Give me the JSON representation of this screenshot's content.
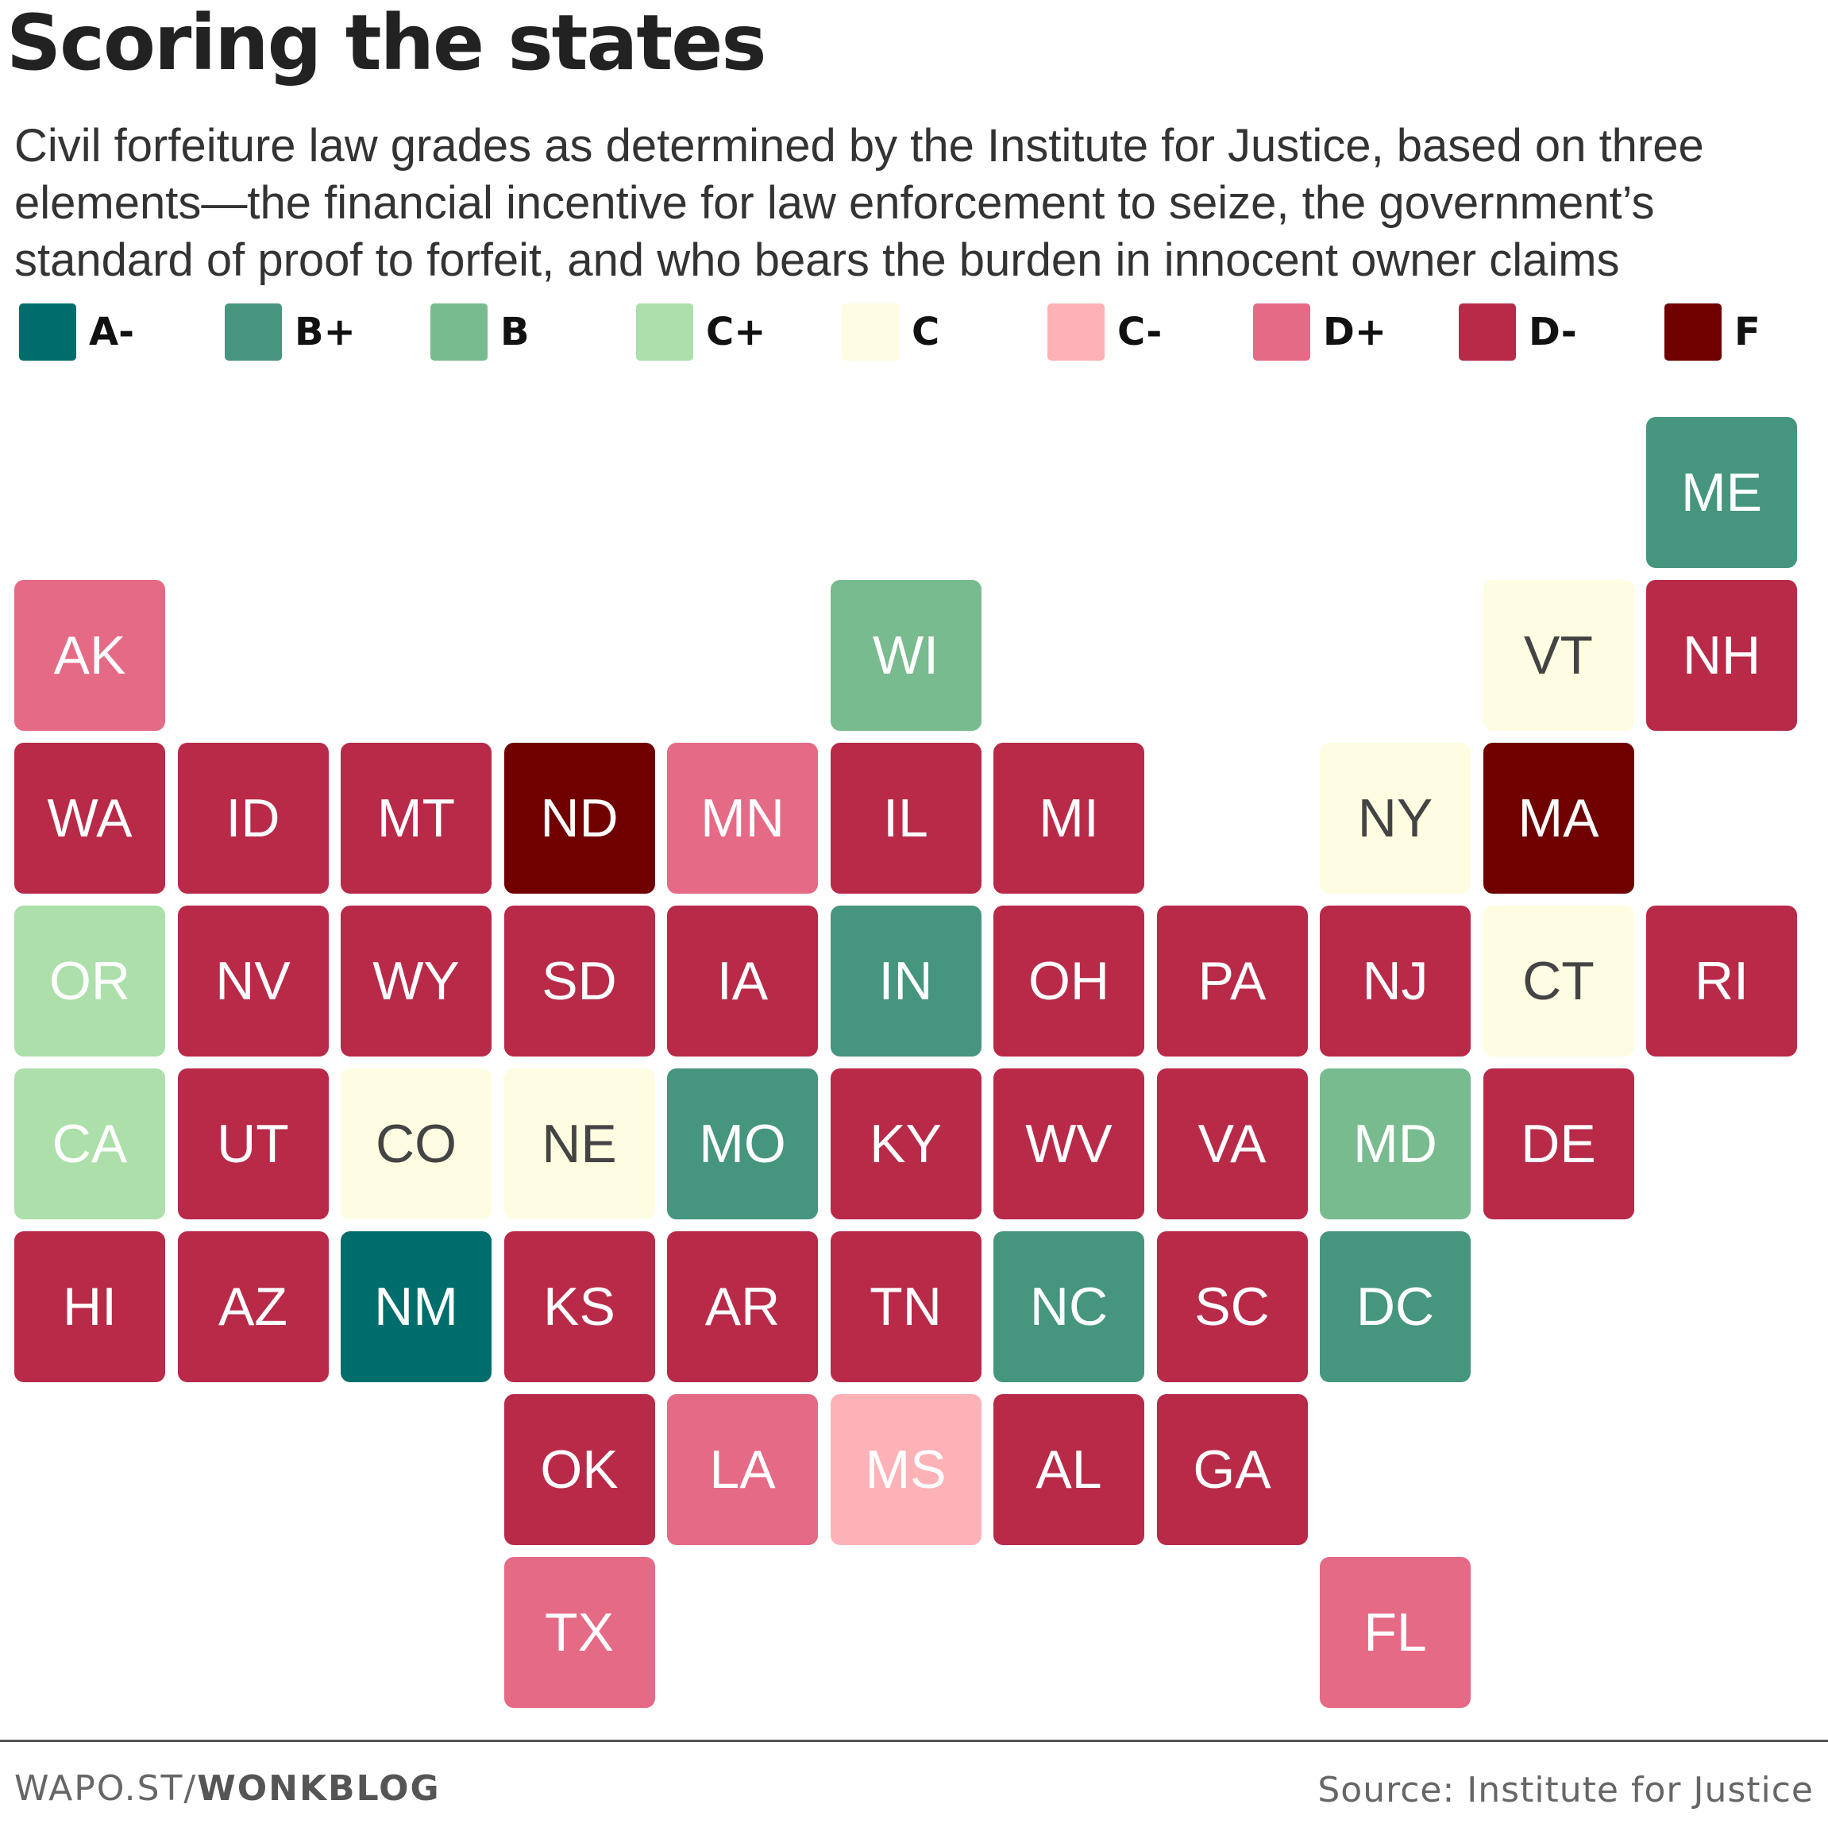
{
  "title": "Scoring the states",
  "subtitle": "Civil forfeiture law grades as determined by the Institute for Justice, based on three elements—the financial incentive for law enforcement to seize, the government’s standard of proof to forfeit, and who bears the burden in innocent owner claims",
  "legend": [
    {
      "grade": "A-",
      "color": "#006d6d"
    },
    {
      "grade": "B+",
      "color": "#46957e"
    },
    {
      "grade": "B",
      "color": "#78bb8e"
    },
    {
      "grade": "C+",
      "color": "#acdfa9"
    },
    {
      "grade": "C",
      "color": "#fefde2"
    },
    {
      "grade": "C-",
      "color": "#fdb2b7"
    },
    {
      "grade": "D+",
      "color": "#e56a86"
    },
    {
      "grade": "D-",
      "color": "#b82a48"
    },
    {
      "grade": "F",
      "color": "#700000"
    }
  ],
  "text_colors": {
    "on_light": "#444444",
    "on_dark": "#ffffff"
  },
  "states": [
    {
      "abbr": "ME",
      "grade": "B+",
      "row": 0,
      "col": 10
    },
    {
      "abbr": "AK",
      "grade": "D+",
      "row": 1,
      "col": 0
    },
    {
      "abbr": "WI",
      "grade": "B",
      "row": 1,
      "col": 5
    },
    {
      "abbr": "VT",
      "grade": "C",
      "row": 1,
      "col": 9
    },
    {
      "abbr": "NH",
      "grade": "D-",
      "row": 1,
      "col": 10
    },
    {
      "abbr": "WA",
      "grade": "D-",
      "row": 2,
      "col": 0
    },
    {
      "abbr": "ID",
      "grade": "D-",
      "row": 2,
      "col": 1
    },
    {
      "abbr": "MT",
      "grade": "D-",
      "row": 2,
      "col": 2
    },
    {
      "abbr": "ND",
      "grade": "F",
      "row": 2,
      "col": 3
    },
    {
      "abbr": "MN",
      "grade": "D+",
      "row": 2,
      "col": 4
    },
    {
      "abbr": "IL",
      "grade": "D-",
      "row": 2,
      "col": 5
    },
    {
      "abbr": "MI",
      "grade": "D-",
      "row": 2,
      "col": 6
    },
    {
      "abbr": "NY",
      "grade": "C",
      "row": 2,
      "col": 8
    },
    {
      "abbr": "MA",
      "grade": "F",
      "row": 2,
      "col": 9
    },
    {
      "abbr": "OR",
      "grade": "C+",
      "row": 3,
      "col": 0
    },
    {
      "abbr": "NV",
      "grade": "D-",
      "row": 3,
      "col": 1
    },
    {
      "abbr": "WY",
      "grade": "D-",
      "row": 3,
      "col": 2
    },
    {
      "abbr": "SD",
      "grade": "D-",
      "row": 3,
      "col": 3
    },
    {
      "abbr": "IA",
      "grade": "D-",
      "row": 3,
      "col": 4
    },
    {
      "abbr": "IN",
      "grade": "B+",
      "row": 3,
      "col": 5
    },
    {
      "abbr": "OH",
      "grade": "D-",
      "row": 3,
      "col": 6
    },
    {
      "abbr": "PA",
      "grade": "D-",
      "row": 3,
      "col": 7
    },
    {
      "abbr": "NJ",
      "grade": "D-",
      "row": 3,
      "col": 8
    },
    {
      "abbr": "CT",
      "grade": "C",
      "row": 3,
      "col": 9
    },
    {
      "abbr": "RI",
      "grade": "D-",
      "row": 3,
      "col": 10
    },
    {
      "abbr": "CA",
      "grade": "C+",
      "row": 4,
      "col": 0
    },
    {
      "abbr": "UT",
      "grade": "D-",
      "row": 4,
      "col": 1
    },
    {
      "abbr": "CO",
      "grade": "C",
      "row": 4,
      "col": 2
    },
    {
      "abbr": "NE",
      "grade": "C",
      "row": 4,
      "col": 3
    },
    {
      "abbr": "MO",
      "grade": "B+",
      "row": 4,
      "col": 4
    },
    {
      "abbr": "KY",
      "grade": "D-",
      "row": 4,
      "col": 5
    },
    {
      "abbr": "WV",
      "grade": "D-",
      "row": 4,
      "col": 6
    },
    {
      "abbr": "VA",
      "grade": "D-",
      "row": 4,
      "col": 7
    },
    {
      "abbr": "MD",
      "grade": "B",
      "row": 4,
      "col": 8
    },
    {
      "abbr": "DE",
      "grade": "D-",
      "row": 4,
      "col": 9
    },
    {
      "abbr": "HI",
      "grade": "D-",
      "row": 5,
      "col": 0
    },
    {
      "abbr": "AZ",
      "grade": "D-",
      "row": 5,
      "col": 1
    },
    {
      "abbr": "NM",
      "grade": "A-",
      "row": 5,
      "col": 2
    },
    {
      "abbr": "KS",
      "grade": "D-",
      "row": 5,
      "col": 3
    },
    {
      "abbr": "AR",
      "grade": "D-",
      "row": 5,
      "col": 4
    },
    {
      "abbr": "TN",
      "grade": "D-",
      "row": 5,
      "col": 5
    },
    {
      "abbr": "NC",
      "grade": "B+",
      "row": 5,
      "col": 6
    },
    {
      "abbr": "SC",
      "grade": "D-",
      "row": 5,
      "col": 7
    },
    {
      "abbr": "DC",
      "grade": "B+",
      "row": 5,
      "col": 8
    },
    {
      "abbr": "OK",
      "grade": "D-",
      "row": 6,
      "col": 3
    },
    {
      "abbr": "LA",
      "grade": "D+",
      "row": 6,
      "col": 4
    },
    {
      "abbr": "MS",
      "grade": "C-",
      "row": 6,
      "col": 5
    },
    {
      "abbr": "AL",
      "grade": "D-",
      "row": 6,
      "col": 6
    },
    {
      "abbr": "GA",
      "grade": "D-",
      "row": 6,
      "col": 7
    },
    {
      "abbr": "TX",
      "grade": "D+",
      "row": 7,
      "col": 3
    },
    {
      "abbr": "FL",
      "grade": "D+",
      "row": 7,
      "col": 8
    }
  ],
  "footer": {
    "credit_prefix": "WAPO.ST/",
    "credit_strong": "WONKBLOG",
    "source": "Source: Institute for Justice"
  }
}
